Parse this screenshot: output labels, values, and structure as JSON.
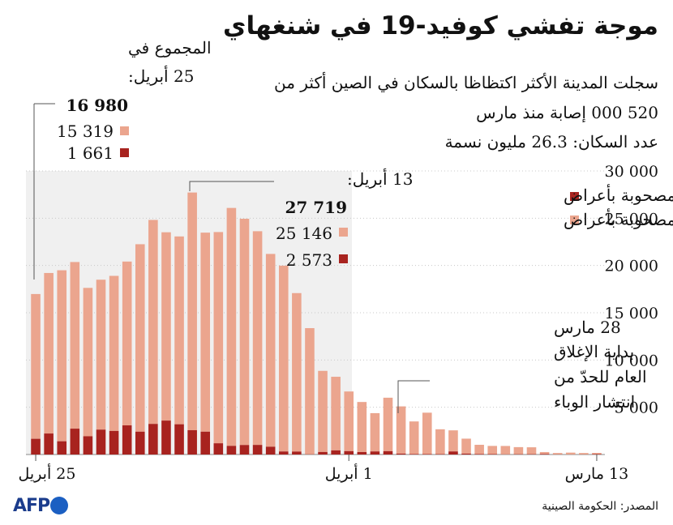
{
  "title": "موجة تفشي كوفيد-19 في شنغهاي",
  "subtitle_lines": [
    "سجلت المدينة الأكثر اكتظاظا بالسكان في الصين أكثر من",
    "520 000 إصابة منذ مارس",
    "عدد السكان: 26.3 مليون نسمة"
  ],
  "source": "المصدر: الحكومة الصينية",
  "logo_text": "AFP",
  "colors": {
    "symptomatic": "#a8231f",
    "asymptomatic": "#eba58e",
    "panel": "#f0f0f0"
  },
  "chart_data": {
    "type": "bar",
    "stacked": true,
    "x_direction": "right-to-left",
    "categories": [
      "13 مارس",
      "14 مارس",
      "15 مارس",
      "16 مارس",
      "17 مارس",
      "18 مارس",
      "19 مارس",
      "20 مارس",
      "21 مارس",
      "22 مارس",
      "23 مارس",
      "24 مارس",
      "25 مارس",
      "26 مارس",
      "27 مارس",
      "28 مارس",
      "29 مارس",
      "30 مارس",
      "31 مارس",
      "1 أبريل",
      "2 أبريل",
      "3 أبريل",
      "4 أبريل",
      "5 أبريل",
      "6 أبريل",
      "7 أبريل",
      "8 أبريل",
      "9 أبريل",
      "10 أبريل",
      "11 أبريل",
      "12 أبريل",
      "13 أبريل",
      "14 أبريل",
      "15 أبريل",
      "16 أبريل",
      "17 أبريل",
      "18 أبريل",
      "19 أبريل",
      "20 أبريل",
      "21 أبريل",
      "22 أبريل",
      "23 أبريل",
      "24 أبريل",
      "25 أبريل"
    ],
    "series": [
      {
        "name": "مصحوبة بأعراض",
        "color": "#a8231f",
        "values": [
          41,
          7,
          4,
          8,
          57,
          31,
          24,
          9,
          45,
          50,
          96,
          326,
          38,
          45,
          50,
          96,
          355,
          326,
          260,
          358,
          438,
          268,
          16,
          311,
          322,
          824,
          1015,
          1006,
          914,
          1189,
          2417,
          2573,
          3200,
          3590,
          3238,
          2417,
          3084,
          2494,
          2634,
          1931,
          2736,
          1401,
          2222,
          1661
        ]
      },
      {
        "name": "غير مصحوبة بأعراض",
        "color": "#eba58e",
        "values": [
          128,
          150,
          197,
          150,
          203,
          734,
          758,
          896,
          865,
          979,
          1582,
          2231,
          2631,
          4381,
          3450,
          4996,
          5656,
          4051,
          5298,
          6311,
          7788,
          8581,
          13354,
          16766,
          19660,
          20398,
          22609,
          23937,
          25173,
          22348,
          21058,
          25146,
          19872,
          19923,
          21582,
          19831,
          17332,
          16407,
          15861,
          15698,
          17629,
          18092,
          16983,
          15319
        ]
      }
    ],
    "yticks": [
      5000,
      10000,
      15000,
      20000,
      25000,
      30000
    ],
    "ytick_labels": [
      "5 000",
      "10 000",
      "15 000",
      "20 000",
      "25 000",
      "30 000"
    ],
    "ylim": [
      0,
      30000
    ],
    "xtick_labels": [
      "13 مارس",
      "1 أبريل",
      "25 أبريل"
    ],
    "legend": [
      {
        "label": "مصحوبة بأعراض",
        "color": "#a8231f"
      },
      {
        "label": "غير مصحوبة بأعراض",
        "color": "#eba58e"
      }
    ],
    "legend_position": "top-right",
    "shaded_period": [
      "1 أبريل",
      "25 أبريل"
    ],
    "annotations": {
      "total_apr25": {
        "line1": "المجموع في",
        "line2": "25 أبريل:",
        "total": "16 980",
        "asymptomatic": "15 319",
        "symptomatic": "1 661"
      },
      "apr13": {
        "line1": "13 أبريل:",
        "total": "27 719",
        "asymptomatic": "25 146",
        "symptomatic": "2 573"
      },
      "lockdown": {
        "lines": [
          "28 مارس",
          "بداية الإغلاق",
          "العام للحدّ من",
          "انتشار الوباء"
        ]
      }
    }
  }
}
